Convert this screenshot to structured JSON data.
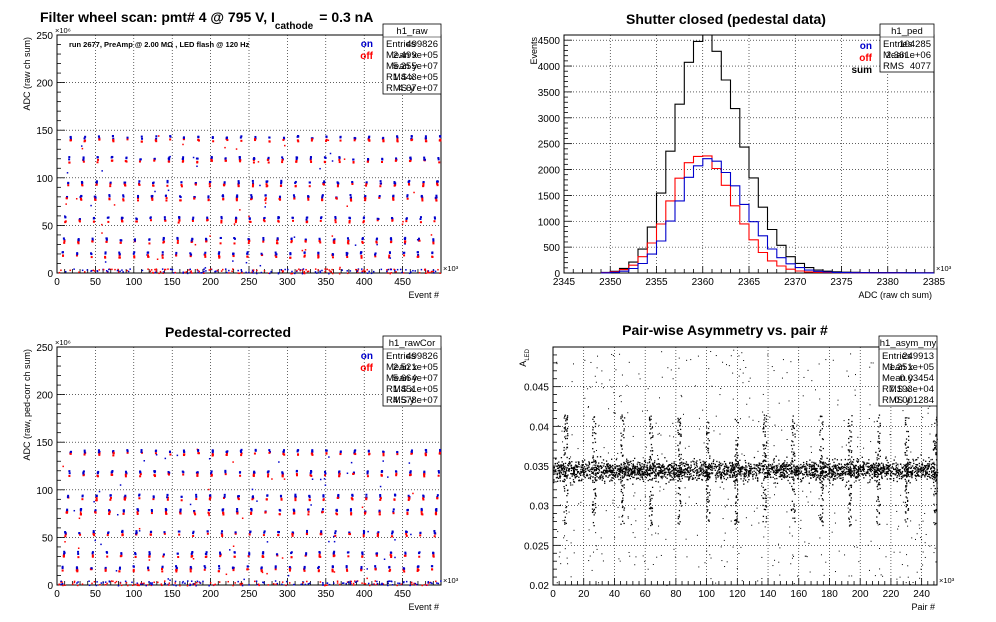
{
  "chart_data": [
    {
      "type": "scatter",
      "title": "Filter wheel scan: pmt#   4 @   795 V, I",
      "title_sub": "cathode",
      "title_tail": "= 0.3 nA",
      "annotation": "run 2677, PreAmp @ 2.00 MΩ , LED flash @  120 Hz",
      "xlabel": "Event #",
      "ylabel": "ADC (raw ch sum)",
      "x_multiplier": "×10³",
      "y_multiplier": "×10⁶",
      "xlim": [
        0,
        500
      ],
      "ylim": [
        0,
        250
      ],
      "x_ticks": [
        0,
        50,
        100,
        150,
        200,
        250,
        300,
        350,
        400,
        450
      ],
      "y_ticks": [
        0,
        50,
        100,
        150,
        200,
        250
      ],
      "grid": true,
      "legend": [
        "on",
        "off"
      ],
      "legend_colors": [
        "#0000cc",
        "#ff0000"
      ],
      "stats": {
        "name": "h1_raw",
        "rows": [
          [
            "Entries",
            "499826"
          ],
          [
            "Mean x",
            "2.499e+05"
          ],
          [
            "Mean y",
            "5.255e+07"
          ],
          [
            "RMS x",
            "1.443e+05"
          ],
          [
            "RMS y",
            "4.67e+07"
          ]
        ]
      },
      "levels": [
        4,
        20,
        35,
        57,
        80,
        95,
        120,
        142
      ],
      "period": 18.5
    },
    {
      "type": "line",
      "title": "Shutter closed (pedestal data)",
      "xlabel": "ADC (raw ch sum)",
      "ylabel": "Events",
      "x_multiplier": "×10³",
      "xlim": [
        2345,
        2385
      ],
      "ylim": [
        0,
        4600
      ],
      "x_ticks": [
        2345,
        2350,
        2355,
        2360,
        2365,
        2370,
        2375,
        2380,
        2385
      ],
      "y_ticks": [
        0,
        500,
        1000,
        1500,
        2000,
        2500,
        3000,
        3500,
        4000,
        4500
      ],
      "grid": true,
      "legend": [
        "on",
        "off",
        "sum"
      ],
      "legend_colors": [
        "#0000cc",
        "#ff0000",
        "#000000"
      ],
      "stats": {
        "name": "h1_ped",
        "rows": [
          [
            "Entries",
            "104285"
          ],
          [
            "Mean",
            "2.361e+06"
          ],
          [
            "RMS",
            "4077"
          ]
        ]
      },
      "series": [
        {
          "name": "sum",
          "color": "#000000",
          "peak": 4500,
          "mean": 2359.9,
          "sigma_left": 3.0,
          "sigma_right": 4.1
        },
        {
          "name": "off",
          "color": "#ff0000",
          "peak": 2290,
          "mean": 2359.5,
          "sigma_left": 3.0,
          "sigma_right": 3.7
        },
        {
          "name": "on",
          "color": "#0000cc",
          "peak": 2200,
          "mean": 2360.4,
          "sigma_left": 3.1,
          "sigma_right": 4.0
        }
      ]
    },
    {
      "type": "scatter",
      "title": "Pedestal-corrected",
      "xlabel": "Event #",
      "ylabel": "ADC (raw, ped-corr ch sum)",
      "x_multiplier": "×10³",
      "y_multiplier": "×10⁶",
      "xlim": [
        0,
        500
      ],
      "ylim": [
        0,
        250
      ],
      "x_ticks": [
        0,
        50,
        100,
        150,
        200,
        250,
        300,
        350,
        400,
        450
      ],
      "y_ticks": [
        0,
        50,
        100,
        150,
        200,
        250
      ],
      "grid": true,
      "legend": [
        "on",
        "off"
      ],
      "legend_colors": [
        "#0000cc",
        "#ff0000"
      ],
      "stats": {
        "name": "h1_rawCor",
        "rows": [
          [
            "Entries",
            "499826"
          ],
          [
            "Mean x",
            "2.521e+05"
          ],
          [
            "Mean y",
            "5.664e+07"
          ],
          [
            "RMS x",
            "1.451e+05"
          ],
          [
            "RMS y",
            "4.578e+07"
          ]
        ]
      },
      "levels": [
        3,
        18,
        33,
        55,
        78,
        93,
        118,
        140
      ],
      "period": 18.5
    },
    {
      "type": "scatter",
      "title": "Pair-wise Asymmetry vs. pair #",
      "xlabel": "Pair #",
      "ylabel": "A",
      "ylabel_sub": "LED",
      "x_multiplier": "×10³",
      "xlim": [
        0,
        250
      ],
      "ylim": [
        0.02,
        0.05
      ],
      "x_ticks": [
        0,
        20,
        40,
        60,
        80,
        100,
        120,
        140,
        160,
        180,
        200,
        220,
        240
      ],
      "y_ticks": [
        0.02,
        0.025,
        0.03,
        0.035,
        0.04,
        0.045
      ],
      "grid": true,
      "stats": {
        "name": "h1_asym_my",
        "rows": [
          [
            "Entries",
            "249913"
          ],
          [
            "Mean x",
            "1.251e+05"
          ],
          [
            "Mean y",
            "0.03454"
          ],
          [
            "RMS x",
            "7.193e+04"
          ],
          [
            "RMS y",
            "0.001284"
          ]
        ]
      },
      "band_center": 0.0345,
      "band_halfwidth": 0.001,
      "spike_period": 18.5
    }
  ]
}
